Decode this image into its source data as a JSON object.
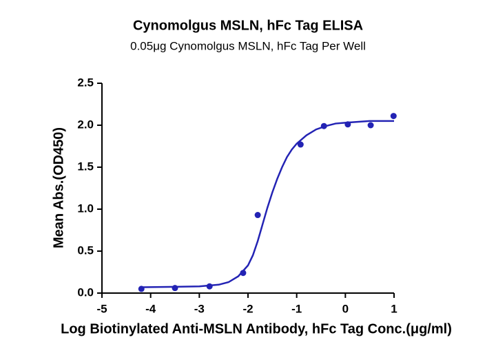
{
  "chart_data": {
    "type": "scatter",
    "title": "Cynomolgus MSLN, hFc Tag ELISA",
    "subtitle": "0.05μg Cynomolgus MSLN, hFc Tag Per Well",
    "xlabel": "Log Biotinylated Anti-MSLN Antibody, hFc Tag Conc.(μg/ml)",
    "ylabel": "Mean Abs.(OD450)",
    "xlim": [
      -5,
      1
    ],
    "xticks": [
      -5,
      -4,
      -3,
      -2,
      -1,
      0,
      1
    ],
    "ylim": [
      0,
      2.5
    ],
    "yticks": [
      {
        "value": 0,
        "label": "0.0"
      },
      {
        "value": 0.5,
        "label": "0.5"
      },
      {
        "value": 1,
        "label": "1.0"
      },
      {
        "value": 1.5,
        "label": "1.5"
      },
      {
        "value": 2,
        "label": "2.0"
      },
      {
        "value": 2.5,
        "label": "2.5"
      }
    ],
    "series": [
      {
        "type": "scatter",
        "color": "#2323b4",
        "x": [
          -4.19,
          -3.5,
          -2.79,
          -2.1,
          -1.8,
          -0.92,
          -0.44,
          0.05,
          0.52,
          0.99
        ],
        "values": [
          0.05,
          0.06,
          0.08,
          0.24,
          0.93,
          1.77,
          1.99,
          2.01,
          2.0,
          2.11
        ]
      },
      {
        "type": "line",
        "color": "#2323b4",
        "x": [
          -4.2,
          -3.5,
          -3.0,
          -2.6,
          -2.4,
          -2.2,
          -2.0,
          -1.9,
          -1.8,
          -1.7,
          -1.6,
          -1.5,
          -1.4,
          -1.3,
          -1.2,
          -1.1,
          -1.0,
          -0.8,
          -0.6,
          -0.4,
          -0.2,
          0,
          0.5,
          1
        ],
        "values": [
          0.07,
          0.075,
          0.08,
          0.1,
          0.13,
          0.2,
          0.33,
          0.45,
          0.62,
          0.82,
          1.02,
          1.2,
          1.36,
          1.5,
          1.62,
          1.71,
          1.78,
          1.88,
          1.95,
          1.99,
          2.02,
          2.03,
          2.05,
          2.05
        ]
      }
    ]
  }
}
